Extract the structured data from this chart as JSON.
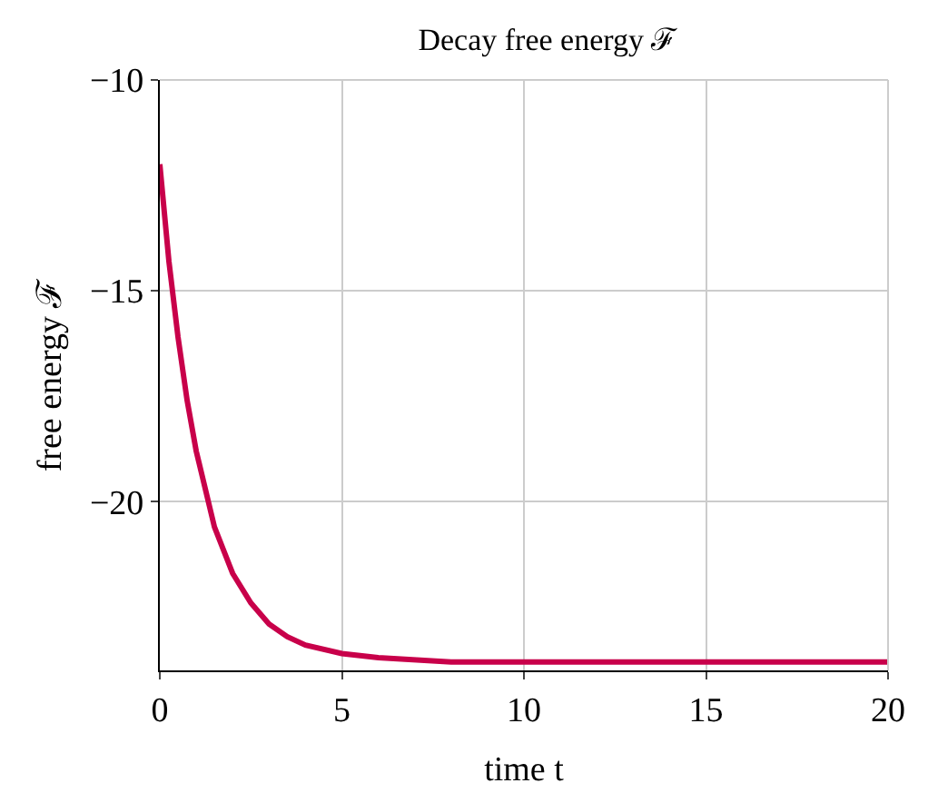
{
  "chart_data": {
    "type": "line",
    "title": "Decay free energy ℱ",
    "xlabel": "time t",
    "ylabel": "free energy ℱ",
    "x": [
      0,
      0.25,
      0.5,
      0.75,
      1,
      1.5,
      2,
      2.5,
      3,
      3.5,
      4,
      5,
      6,
      8,
      10,
      15,
      20
    ],
    "series": [
      {
        "color": "#c8004a",
        "values": [
          -12,
          -14.3,
          -16.1,
          -17.6,
          -18.8,
          -20.6,
          -21.7,
          -22.4,
          -22.9,
          -23.2,
          -23.4,
          -23.6,
          -23.7,
          -23.8,
          -23.8,
          -23.8,
          -23.8
        ]
      }
    ],
    "xlim": [
      0,
      20
    ],
    "ylim": [
      -24,
      -10
    ],
    "xticks": [
      0,
      5,
      10,
      15,
      20
    ],
    "yticks": [
      {
        "value": -10,
        "label": "−10"
      },
      {
        "value": -15,
        "label": "−15"
      },
      {
        "value": -20,
        "label": "−20"
      }
    ],
    "grid": true,
    "line_style": "solid",
    "marker": "none"
  }
}
